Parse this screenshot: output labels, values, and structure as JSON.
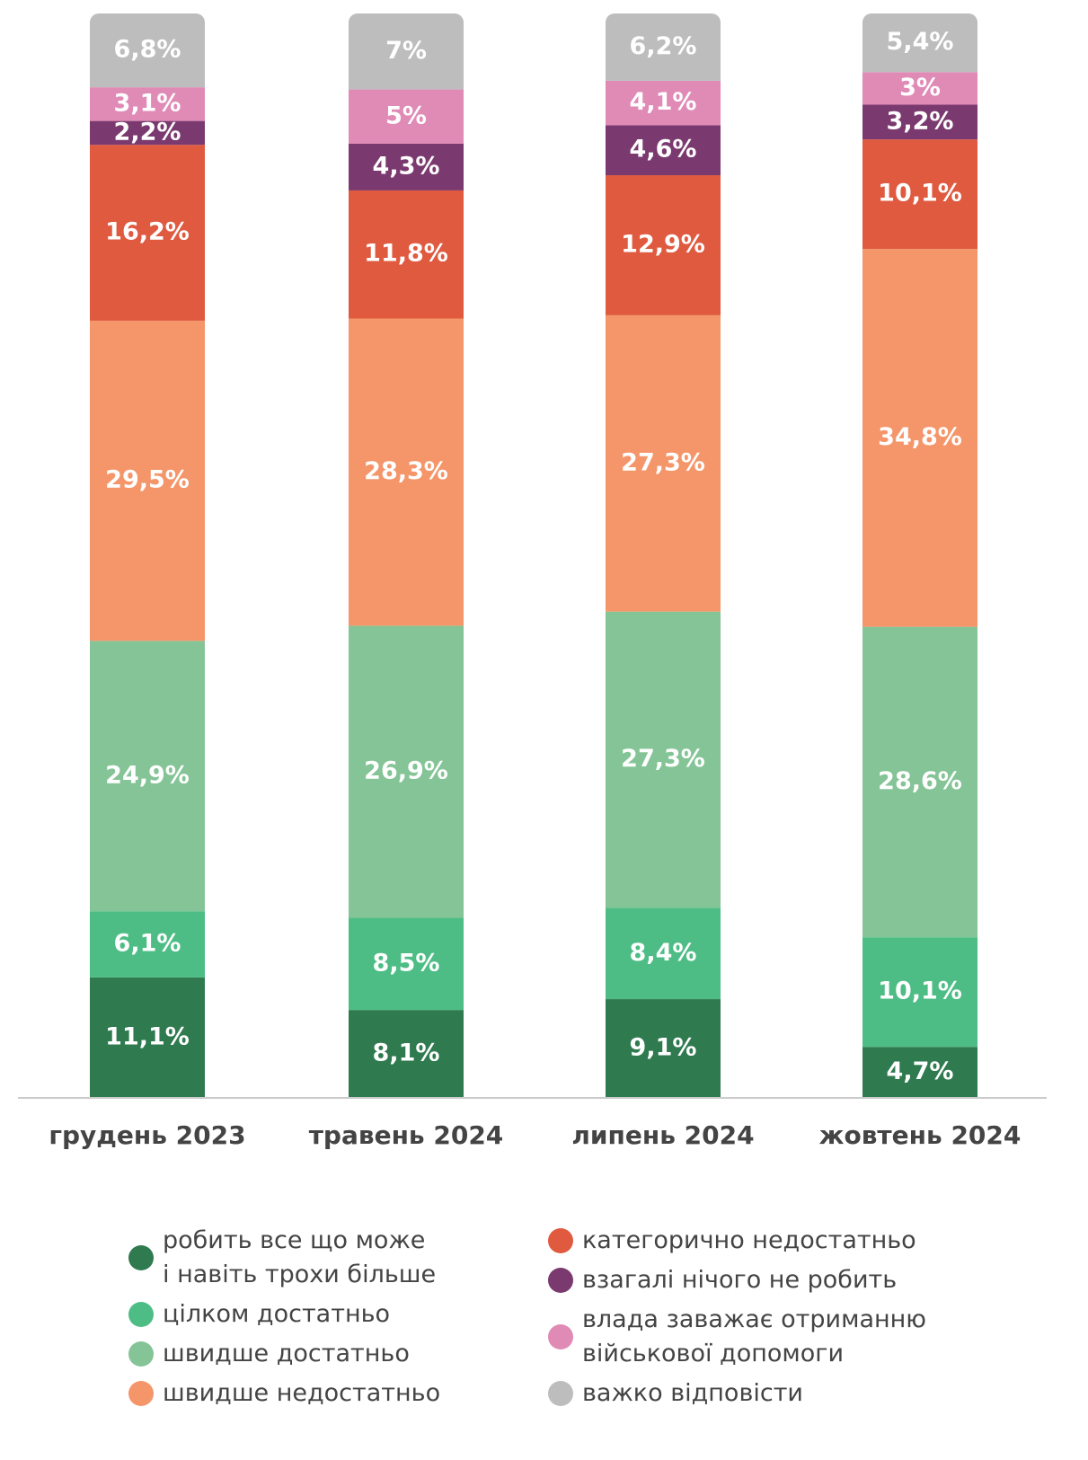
{
  "chart_data": {
    "type": "stacked_bar",
    "categories": [
      "грудень 2023",
      "травень 2024",
      "липень 2024",
      "жовтень 2024"
    ],
    "series": [
      {
        "name": "робить все що може\nі навіть трохи більше",
        "color": "#2f7a4f",
        "values": [
          11.1,
          8.1,
          9.1,
          4.7
        ],
        "value_labels": [
          "11,1%",
          "8,1%",
          "9,1%",
          "4,7%"
        ]
      },
      {
        "name": "цілком достатньо",
        "color": "#4dbd85",
        "values": [
          6.1,
          8.5,
          8.4,
          10.1
        ],
        "value_labels": [
          "6,1%",
          "8,5%",
          "8,4%",
          "10,1%"
        ]
      },
      {
        "name": "швидше достатньо",
        "color": "#84c496",
        "values": [
          24.9,
          26.9,
          27.3,
          28.6
        ],
        "value_labels": [
          "24,9%",
          "26,9%",
          "27,3%",
          "28,6%"
        ]
      },
      {
        "name": "швидше недостатньо",
        "color": "#f4966a",
        "values": [
          29.5,
          28.3,
          27.3,
          34.8
        ],
        "value_labels": [
          "29,5%",
          "28,3%",
          "27,3%",
          "34,8%"
        ]
      },
      {
        "name": "категорично недостатньо",
        "color": "#df5a3f",
        "values": [
          16.2,
          11.8,
          12.9,
          10.1
        ],
        "value_labels": [
          "16,2%",
          "11,8%",
          "12,9%",
          "10,1%"
        ]
      },
      {
        "name": "взагалі нічого не робить",
        "color": "#7b3a6f",
        "values": [
          2.2,
          4.3,
          4.6,
          3.2
        ],
        "value_labels": [
          "2,2%",
          "4,3%",
          "4,6%",
          "3,2%"
        ]
      },
      {
        "name": "влада заважає отриманню\nвійськової допомоги",
        "color": "#e08ab6",
        "values": [
          3.1,
          5,
          4.1,
          3
        ],
        "value_labels": [
          "3,1%",
          "5%",
          "4,1%",
          "3%"
        ]
      },
      {
        "name": "важко відповісти",
        "color": "#bdbdbd",
        "values": [
          6.8,
          7,
          6.2,
          5.4
        ],
        "value_labels": [
          "6,8%",
          "7%",
          "6,2%",
          "5,4%"
        ]
      }
    ]
  }
}
